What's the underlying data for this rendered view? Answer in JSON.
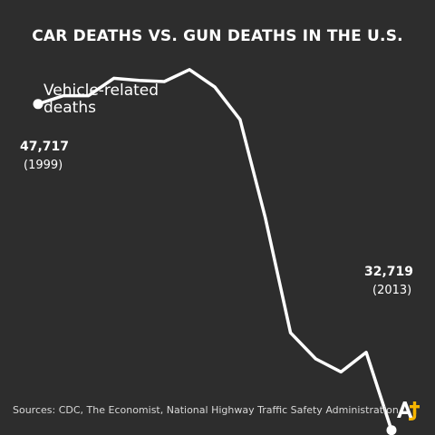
{
  "title": "CAR DEATHS VS. GUN DEATHS IN THE U.S.",
  "sources": "Sources: CDC, The Economist, National Highway Traffic Safety Administration",
  "logo_mark": "AJ+",
  "colors": {
    "background": "#2d2d2d",
    "line": "#ffffff",
    "text": "#ffffff",
    "logo": "#f5b400"
  },
  "chart_data": {
    "type": "line",
    "title": "CAR DEATHS VS. GUN DEATHS IN THE U.S.",
    "grid": false,
    "axes_visible": false,
    "x": [
      1999,
      2000,
      2001,
      2002,
      2003,
      2004,
      2005,
      2006,
      2007,
      2008,
      2009,
      2010,
      2011,
      2012,
      2013
    ],
    "xlim": [
      1999,
      2013
    ],
    "ylim": [
      30000,
      50000
    ],
    "series": [
      {
        "name": "Vehicle-related deaths",
        "label_lines": [
          "Vehicle-related",
          "deaths"
        ],
        "values": [
          47717,
          48100,
          48100,
          48900,
          48800,
          48750,
          49300,
          48500,
          47000,
          42500,
          37200,
          36000,
          35400,
          36300,
          32719
        ]
      }
    ],
    "endpoint_labels": {
      "start": {
        "value": "47,717",
        "year": "(1999)"
      },
      "end": {
        "value": "32,719",
        "year": "(2013)"
      }
    }
  }
}
